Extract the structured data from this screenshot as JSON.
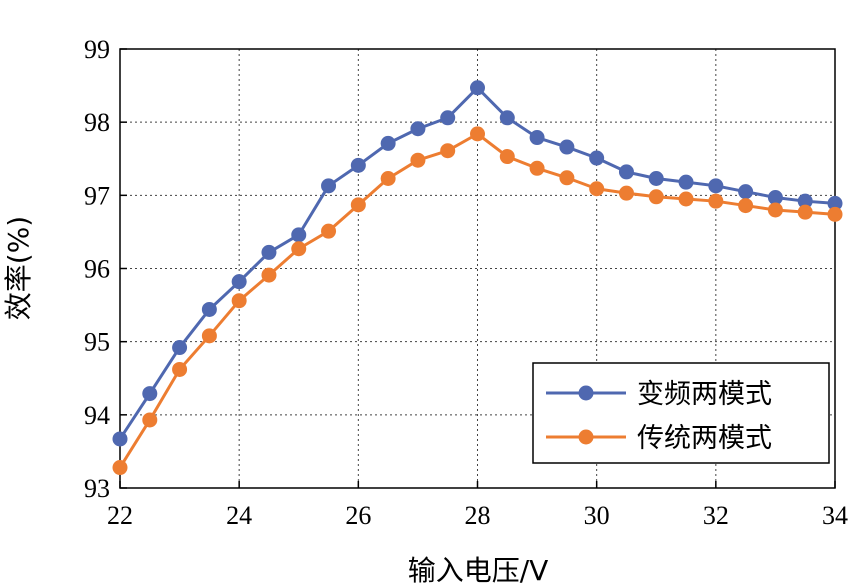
{
  "chart_data": {
    "type": "line",
    "xlabel": "输入电压/V",
    "ylabel": "效率(%)",
    "xlim": [
      22,
      34
    ],
    "ylim": [
      93,
      99
    ],
    "x_ticks": [
      "22",
      "24",
      "26",
      "28",
      "30",
      "32",
      "34"
    ],
    "y_ticks": [
      "93",
      "94",
      "95",
      "96",
      "97",
      "98",
      "99"
    ],
    "grid": true,
    "legend_position": "bottom-right",
    "x": [
      22,
      22.5,
      23,
      23.5,
      24,
      24.5,
      25,
      25.5,
      26,
      26.5,
      27,
      27.5,
      28,
      28.5,
      29,
      29.5,
      30,
      30.5,
      31,
      31.5,
      32,
      32.5,
      33,
      33.5,
      34
    ],
    "series": [
      {
        "name": "变频两模式",
        "color": "#4f68b0",
        "values": [
          93.67,
          94.29,
          94.92,
          95.44,
          95.82,
          96.22,
          96.46,
          97.13,
          97.41,
          97.71,
          97.91,
          98.06,
          98.47,
          98.06,
          97.79,
          97.66,
          97.51,
          97.32,
          97.23,
          97.18,
          97.13,
          97.05,
          96.97,
          96.92,
          96.89
        ]
      },
      {
        "name": "传统两模式",
        "color": "#ed7d31",
        "values": [
          93.28,
          93.93,
          94.62,
          95.08,
          95.56,
          95.91,
          96.27,
          96.51,
          96.87,
          97.23,
          97.48,
          97.61,
          97.84,
          97.53,
          97.37,
          97.24,
          97.09,
          97.03,
          96.98,
          96.95,
          96.92,
          96.86,
          96.8,
          96.77,
          96.74
        ]
      }
    ]
  }
}
